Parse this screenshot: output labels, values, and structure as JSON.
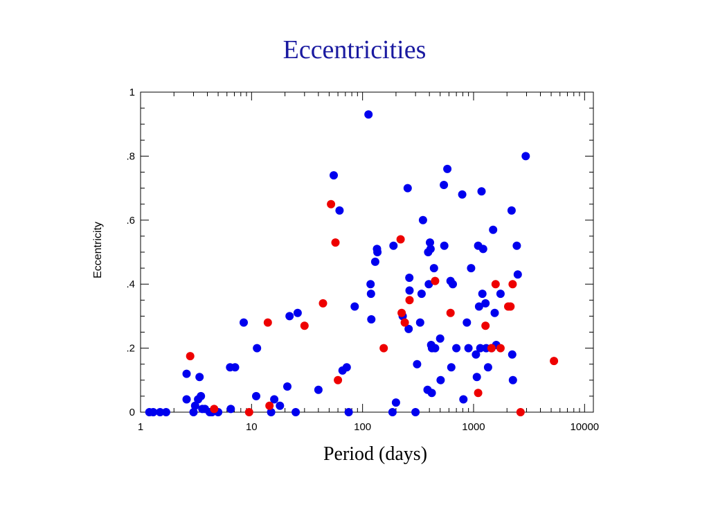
{
  "chart_data": {
    "type": "scatter",
    "title": "Eccentricities",
    "xlabel": "Period (days)",
    "ylabel": "Eccentricity",
    "xscale": "log",
    "xlim": [
      1,
      12000
    ],
    "ylim": [
      0,
      1
    ],
    "x_tick_labels": [
      "1",
      "10",
      "100",
      "1000",
      "10000"
    ],
    "x_tick_values": [
      1,
      10,
      100,
      1000,
      10000
    ],
    "y_tick_labels": [
      "0",
      ".2",
      ".4",
      ".6",
      ".8",
      "1"
    ],
    "y_tick_values": [
      0,
      0.2,
      0.4,
      0.6,
      0.8,
      1
    ],
    "grid": false,
    "series": [
      {
        "color": "#0000ee",
        "points": [
          [
            1.2,
            0
          ],
          [
            1.3,
            0
          ],
          [
            1.5,
            0
          ],
          [
            1.7,
            0
          ],
          [
            2.6,
            0.04
          ],
          [
            2.6,
            0.12
          ],
          [
            3,
            0
          ],
          [
            3.1,
            0.02
          ],
          [
            3.3,
            0.04
          ],
          [
            3.4,
            0.11
          ],
          [
            3.5,
            0.05
          ],
          [
            3.6,
            0.01
          ],
          [
            3.8,
            0.01
          ],
          [
            4.2,
            0
          ],
          [
            4.4,
            0
          ],
          [
            5,
            0
          ],
          [
            6.4,
            0.14
          ],
          [
            6.5,
            0.01
          ],
          [
            7.1,
            0.14
          ],
          [
            8.5,
            0.28
          ],
          [
            11,
            0.05
          ],
          [
            11.2,
            0.2
          ],
          [
            15,
            0
          ],
          [
            16,
            0.04
          ],
          [
            18,
            0.02
          ],
          [
            21,
            0.08
          ],
          [
            22,
            0.3
          ],
          [
            26,
            0.31
          ],
          [
            25,
            0
          ],
          [
            40,
            0.07
          ],
          [
            55,
            0.74
          ],
          [
            62,
            0.63
          ],
          [
            66,
            0.13
          ],
          [
            72,
            0.14
          ],
          [
            75,
            0
          ],
          [
            85,
            0.33
          ],
          [
            113,
            0.93
          ],
          [
            118,
            0.4
          ],
          [
            119,
            0.37
          ],
          [
            120,
            0.29
          ],
          [
            130,
            0.47
          ],
          [
            135,
            0.51
          ],
          [
            136,
            0.5
          ],
          [
            186,
            0
          ],
          [
            190,
            0.52
          ],
          [
            200,
            0.03
          ],
          [
            230,
            0.3
          ],
          [
            255,
            0.7
          ],
          [
            260,
            0.26
          ],
          [
            264,
            0.42
          ],
          [
            265,
            0.38
          ],
          [
            300,
            0
          ],
          [
            310,
            0.15
          ],
          [
            330,
            0.28
          ],
          [
            340,
            0.37
          ],
          [
            350,
            0.6
          ],
          [
            385,
            0.07
          ],
          [
            390,
            0.5
          ],
          [
            395,
            0.4
          ],
          [
            405,
            0.53
          ],
          [
            410,
            0.51
          ],
          [
            415,
            0.21
          ],
          [
            420,
            0.06
          ],
          [
            422,
            0.2
          ],
          [
            440,
            0.45
          ],
          [
            450,
            0.2
          ],
          [
            500,
            0.23
          ],
          [
            505,
            0.1
          ],
          [
            540,
            0.71
          ],
          [
            545,
            0.52
          ],
          [
            580,
            0.76
          ],
          [
            620,
            0.41
          ],
          [
            630,
            0.14
          ],
          [
            650,
            0.4
          ],
          [
            700,
            0.2
          ],
          [
            790,
            0.68
          ],
          [
            810,
            0.04
          ],
          [
            870,
            0.28
          ],
          [
            900,
            0.2
          ],
          [
            950,
            0.45
          ],
          [
            1050,
            0.18
          ],
          [
            1070,
            0.11
          ],
          [
            1100,
            0.52
          ],
          [
            1120,
            0.33
          ],
          [
            1150,
            0.2
          ],
          [
            1180,
            0.69
          ],
          [
            1200,
            0.37
          ],
          [
            1220,
            0.51
          ],
          [
            1280,
            0.34
          ],
          [
            1300,
            0.2
          ],
          [
            1350,
            0.14
          ],
          [
            1450,
            0.2
          ],
          [
            1500,
            0.57
          ],
          [
            1550,
            0.31
          ],
          [
            1600,
            0.21
          ],
          [
            1750,
            0.37
          ],
          [
            2200,
            0.63
          ],
          [
            2230,
            0.18
          ],
          [
            2260,
            0.1
          ],
          [
            2450,
            0.52
          ],
          [
            2500,
            0.43
          ],
          [
            2950,
            0.8
          ]
        ]
      },
      {
        "color": "#ee0000",
        "points": [
          [
            2.8,
            0.175
          ],
          [
            4.6,
            0.01
          ],
          [
            9.5,
            0
          ],
          [
            14,
            0.28
          ],
          [
            14.5,
            0.02
          ],
          [
            30,
            0.27
          ],
          [
            44,
            0.34
          ],
          [
            52,
            0.65
          ],
          [
            57,
            0.53
          ],
          [
            60,
            0.1
          ],
          [
            155,
            0.2
          ],
          [
            220,
            0.54
          ],
          [
            225,
            0.31
          ],
          [
            240,
            0.28
          ],
          [
            265,
            0.35
          ],
          [
            450,
            0.41
          ],
          [
            620,
            0.31
          ],
          [
            1100,
            0.06
          ],
          [
            1280,
            0.27
          ],
          [
            1450,
            0.2
          ],
          [
            1580,
            0.4
          ],
          [
            1750,
            0.2
          ],
          [
            2050,
            0.33
          ],
          [
            2150,
            0.33
          ],
          [
            2250,
            0.4
          ],
          [
            2650,
            0
          ],
          [
            5300,
            0.16
          ]
        ]
      }
    ]
  }
}
